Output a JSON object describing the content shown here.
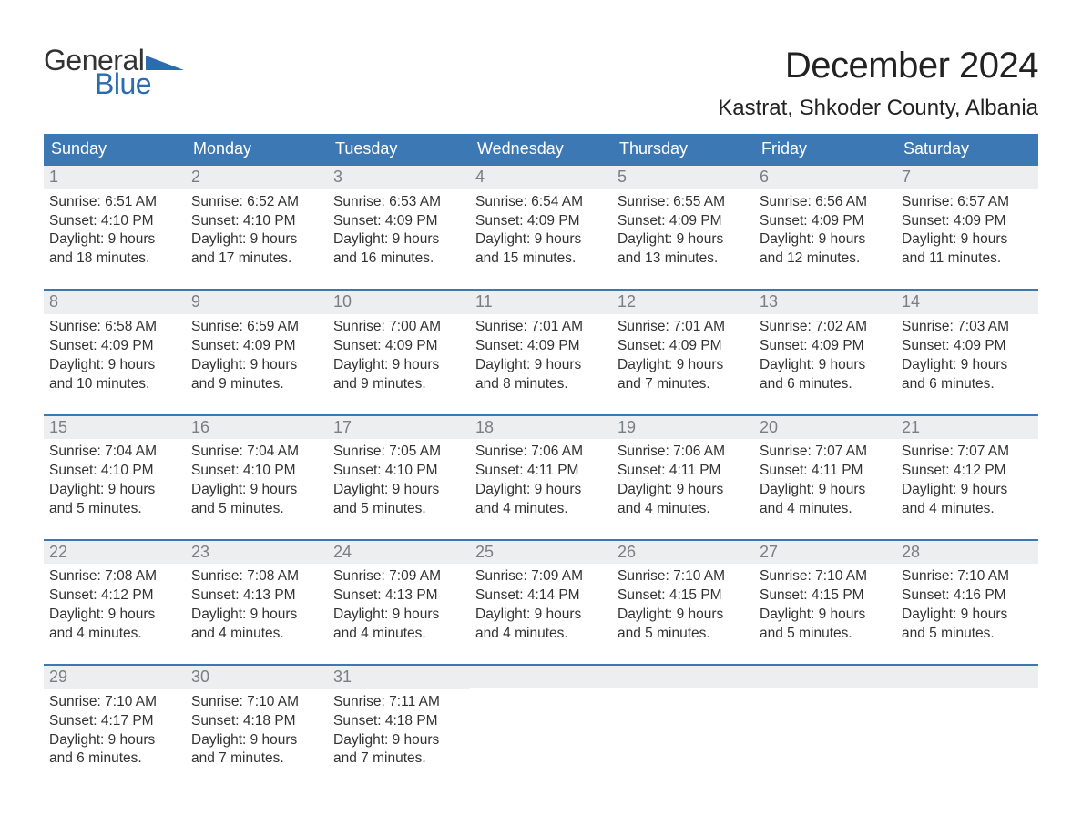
{
  "logo": {
    "text_general": "General",
    "text_blue": "Blue",
    "triangle_color": "#2b6bb0"
  },
  "header": {
    "month_title": "December 2024",
    "location": "Kastrat, Shkoder County, Albania"
  },
  "colors": {
    "dow_bg": "#3c78b4",
    "dow_text": "#ffffff",
    "daynum_bg": "#eceeef",
    "daynum_text": "#7a7f84",
    "week_border": "#3c78b4",
    "body_text": "#333333",
    "location_text": "#222222",
    "blue_brand": "#2b6bb0"
  },
  "dow": [
    "Sunday",
    "Monday",
    "Tuesday",
    "Wednesday",
    "Thursday",
    "Friday",
    "Saturday"
  ],
  "weeks": [
    [
      {
        "n": "1",
        "sr": "Sunrise: 6:51 AM",
        "ss": "Sunset: 4:10 PM",
        "d1": "Daylight: 9 hours",
        "d2": "and 18 minutes."
      },
      {
        "n": "2",
        "sr": "Sunrise: 6:52 AM",
        "ss": "Sunset: 4:10 PM",
        "d1": "Daylight: 9 hours",
        "d2": "and 17 minutes."
      },
      {
        "n": "3",
        "sr": "Sunrise: 6:53 AM",
        "ss": "Sunset: 4:09 PM",
        "d1": "Daylight: 9 hours",
        "d2": "and 16 minutes."
      },
      {
        "n": "4",
        "sr": "Sunrise: 6:54 AM",
        "ss": "Sunset: 4:09 PM",
        "d1": "Daylight: 9 hours",
        "d2": "and 15 minutes."
      },
      {
        "n": "5",
        "sr": "Sunrise: 6:55 AM",
        "ss": "Sunset: 4:09 PM",
        "d1": "Daylight: 9 hours",
        "d2": "and 13 minutes."
      },
      {
        "n": "6",
        "sr": "Sunrise: 6:56 AM",
        "ss": "Sunset: 4:09 PM",
        "d1": "Daylight: 9 hours",
        "d2": "and 12 minutes."
      },
      {
        "n": "7",
        "sr": "Sunrise: 6:57 AM",
        "ss": "Sunset: 4:09 PM",
        "d1": "Daylight: 9 hours",
        "d2": "and 11 minutes."
      }
    ],
    [
      {
        "n": "8",
        "sr": "Sunrise: 6:58 AM",
        "ss": "Sunset: 4:09 PM",
        "d1": "Daylight: 9 hours",
        "d2": "and 10 minutes."
      },
      {
        "n": "9",
        "sr": "Sunrise: 6:59 AM",
        "ss": "Sunset: 4:09 PM",
        "d1": "Daylight: 9 hours",
        "d2": "and 9 minutes."
      },
      {
        "n": "10",
        "sr": "Sunrise: 7:00 AM",
        "ss": "Sunset: 4:09 PM",
        "d1": "Daylight: 9 hours",
        "d2": "and 9 minutes."
      },
      {
        "n": "11",
        "sr": "Sunrise: 7:01 AM",
        "ss": "Sunset: 4:09 PM",
        "d1": "Daylight: 9 hours",
        "d2": "and 8 minutes."
      },
      {
        "n": "12",
        "sr": "Sunrise: 7:01 AM",
        "ss": "Sunset: 4:09 PM",
        "d1": "Daylight: 9 hours",
        "d2": "and 7 minutes."
      },
      {
        "n": "13",
        "sr": "Sunrise: 7:02 AM",
        "ss": "Sunset: 4:09 PM",
        "d1": "Daylight: 9 hours",
        "d2": "and 6 minutes."
      },
      {
        "n": "14",
        "sr": "Sunrise: 7:03 AM",
        "ss": "Sunset: 4:09 PM",
        "d1": "Daylight: 9 hours",
        "d2": "and 6 minutes."
      }
    ],
    [
      {
        "n": "15",
        "sr": "Sunrise: 7:04 AM",
        "ss": "Sunset: 4:10 PM",
        "d1": "Daylight: 9 hours",
        "d2": "and 5 minutes."
      },
      {
        "n": "16",
        "sr": "Sunrise: 7:04 AM",
        "ss": "Sunset: 4:10 PM",
        "d1": "Daylight: 9 hours",
        "d2": "and 5 minutes."
      },
      {
        "n": "17",
        "sr": "Sunrise: 7:05 AM",
        "ss": "Sunset: 4:10 PM",
        "d1": "Daylight: 9 hours",
        "d2": "and 5 minutes."
      },
      {
        "n": "18",
        "sr": "Sunrise: 7:06 AM",
        "ss": "Sunset: 4:11 PM",
        "d1": "Daylight: 9 hours",
        "d2": "and 4 minutes."
      },
      {
        "n": "19",
        "sr": "Sunrise: 7:06 AM",
        "ss": "Sunset: 4:11 PM",
        "d1": "Daylight: 9 hours",
        "d2": "and 4 minutes."
      },
      {
        "n": "20",
        "sr": "Sunrise: 7:07 AM",
        "ss": "Sunset: 4:11 PM",
        "d1": "Daylight: 9 hours",
        "d2": "and 4 minutes."
      },
      {
        "n": "21",
        "sr": "Sunrise: 7:07 AM",
        "ss": "Sunset: 4:12 PM",
        "d1": "Daylight: 9 hours",
        "d2": "and 4 minutes."
      }
    ],
    [
      {
        "n": "22",
        "sr": "Sunrise: 7:08 AM",
        "ss": "Sunset: 4:12 PM",
        "d1": "Daylight: 9 hours",
        "d2": "and 4 minutes."
      },
      {
        "n": "23",
        "sr": "Sunrise: 7:08 AM",
        "ss": "Sunset: 4:13 PM",
        "d1": "Daylight: 9 hours",
        "d2": "and 4 minutes."
      },
      {
        "n": "24",
        "sr": "Sunrise: 7:09 AM",
        "ss": "Sunset: 4:13 PM",
        "d1": "Daylight: 9 hours",
        "d2": "and 4 minutes."
      },
      {
        "n": "25",
        "sr": "Sunrise: 7:09 AM",
        "ss": "Sunset: 4:14 PM",
        "d1": "Daylight: 9 hours",
        "d2": "and 4 minutes."
      },
      {
        "n": "26",
        "sr": "Sunrise: 7:10 AM",
        "ss": "Sunset: 4:15 PM",
        "d1": "Daylight: 9 hours",
        "d2": "and 5 minutes."
      },
      {
        "n": "27",
        "sr": "Sunrise: 7:10 AM",
        "ss": "Sunset: 4:15 PM",
        "d1": "Daylight: 9 hours",
        "d2": "and 5 minutes."
      },
      {
        "n": "28",
        "sr": "Sunrise: 7:10 AM",
        "ss": "Sunset: 4:16 PM",
        "d1": "Daylight: 9 hours",
        "d2": "and 5 minutes."
      }
    ],
    [
      {
        "n": "29",
        "sr": "Sunrise: 7:10 AM",
        "ss": "Sunset: 4:17 PM",
        "d1": "Daylight: 9 hours",
        "d2": "and 6 minutes."
      },
      {
        "n": "30",
        "sr": "Sunrise: 7:10 AM",
        "ss": "Sunset: 4:18 PM",
        "d1": "Daylight: 9 hours",
        "d2": "and 7 minutes."
      },
      {
        "n": "31",
        "sr": "Sunrise: 7:11 AM",
        "ss": "Sunset: 4:18 PM",
        "d1": "Daylight: 9 hours",
        "d2": "and 7 minutes."
      },
      {
        "empty": true
      },
      {
        "empty": true
      },
      {
        "empty": true
      },
      {
        "empty": true
      }
    ]
  ],
  "typography": {
    "month_title_fontsize": 40,
    "location_fontsize": 24,
    "dow_fontsize": 18,
    "daynum_fontsize": 18,
    "daytext_fontsize": 15.5,
    "logo_fontsize": 32
  }
}
